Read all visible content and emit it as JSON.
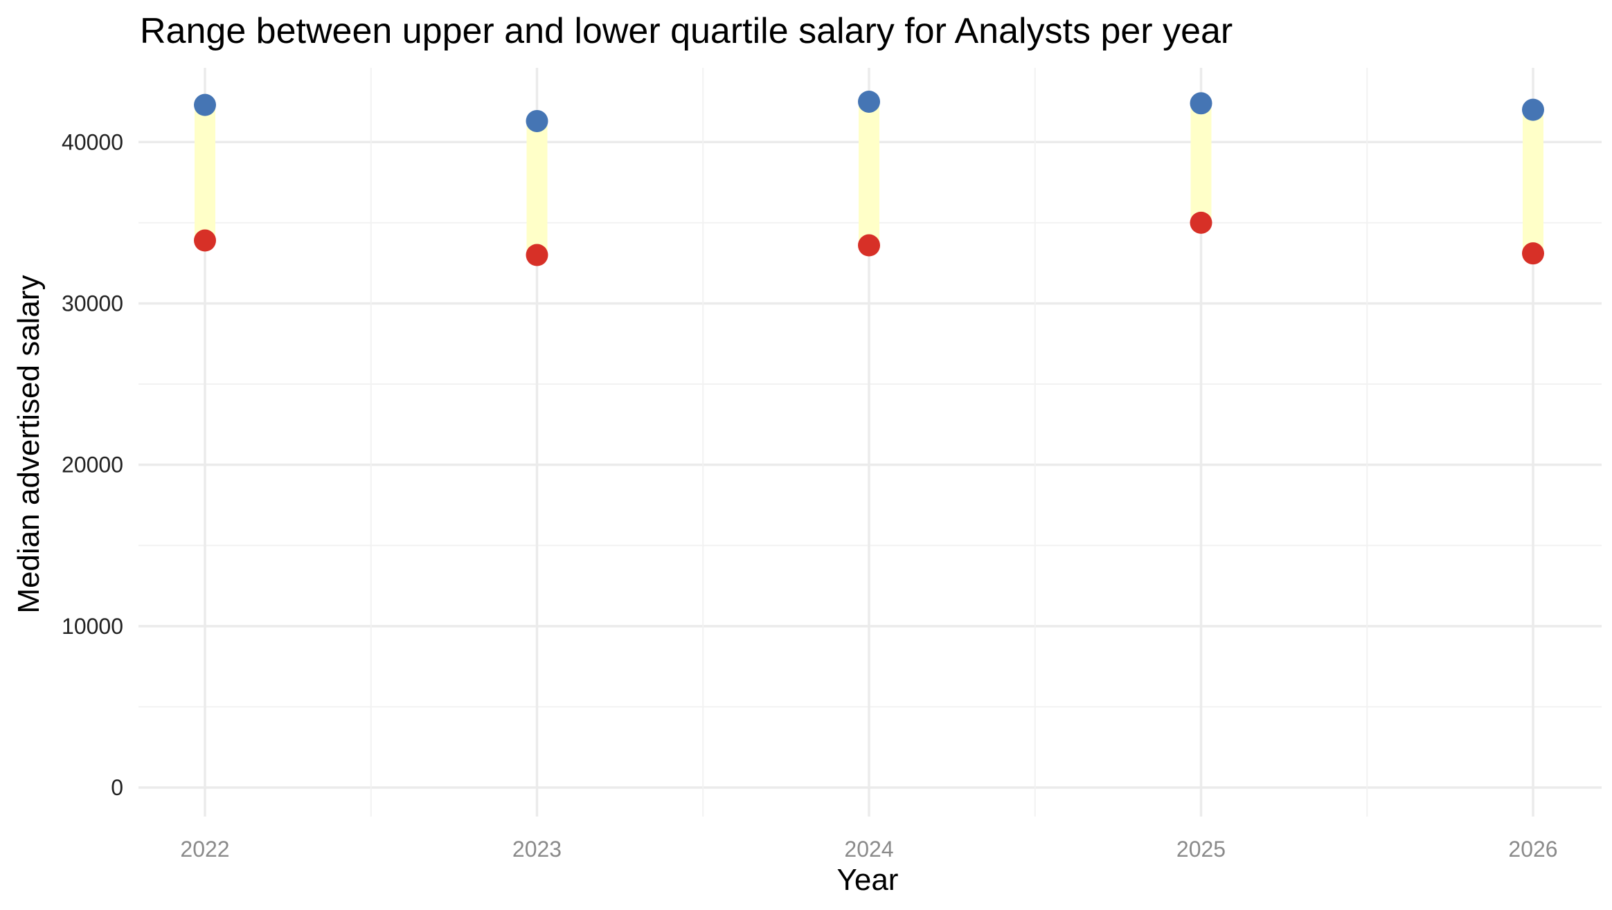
{
  "chart_data": {
    "type": "dumbbell",
    "title": "Range between upper and lower quartile salary for Analysts per year",
    "xlabel": "Year",
    "ylabel": "Median advertised salary",
    "categories": [
      "2022",
      "2023",
      "2024",
      "2025",
      "2026"
    ],
    "series": [
      {
        "role": "upper quartile",
        "color": "#4575b4",
        "values": [
          42300,
          41300,
          42500,
          42400,
          42000
        ]
      },
      {
        "role": "lower quartile",
        "color": "#d73027",
        "values": [
          33900,
          33000,
          33600,
          35000,
          33100
        ]
      }
    ],
    "range_bar_color": "#ffffc8",
    "ylim": [
      -1800,
      44600
    ],
    "yticks": [
      0,
      10000,
      20000,
      30000,
      40000
    ],
    "grid": true,
    "legend": "none"
  }
}
